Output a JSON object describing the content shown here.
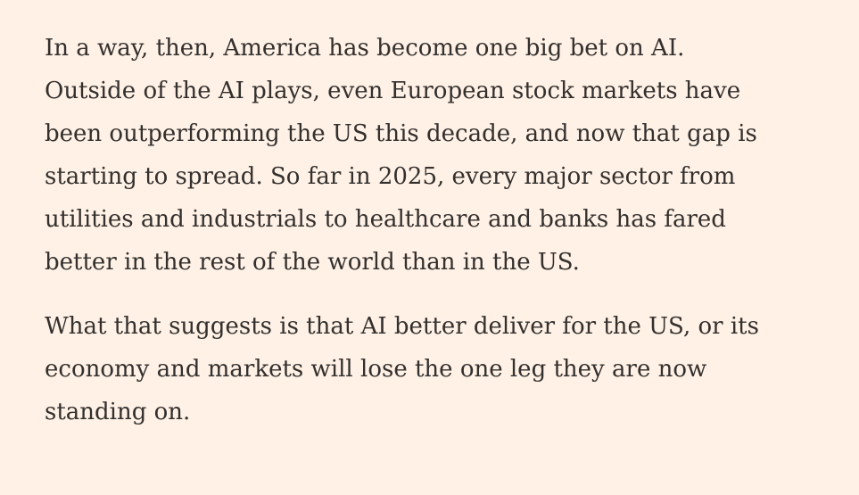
{
  "article": {
    "paragraphs": [
      {
        "lines": [
          "In a way, then, America has become one big bet on AI.",
          "Outside of the AI plays, even European stock markets have",
          "been outperforming the US this decade, and now that gap is",
          "starting to spread. So far in 2025, every major sector from",
          "utilities and industrials to healthcare and banks has fared",
          "better in the rest of the world than in the US."
        ]
      },
      {
        "lines": [
          "What that suggests is that AI better deliver for the US, or its",
          "economy and markets will lose the one leg they are now",
          "standing on."
        ]
      }
    ]
  }
}
